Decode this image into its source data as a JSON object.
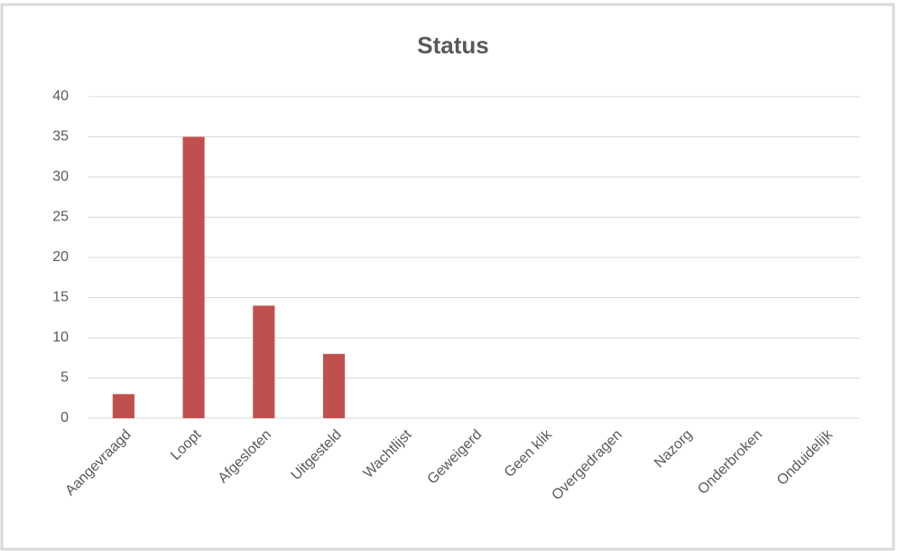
{
  "chart_data": {
    "type": "bar",
    "title": "Status",
    "categories": [
      "Aangevraagd",
      "Loopt",
      "Afgesloten",
      "Uitgesteld",
      "Wachtlijst",
      "Geweigerd",
      "Geen klik",
      "Overgedragen",
      "Nazorg",
      "Onderbroken",
      "Onduidelijk"
    ],
    "values": [
      3,
      35,
      14,
      8,
      0,
      0,
      0,
      0,
      0,
      0,
      0
    ],
    "color": "#c0504d",
    "ylim": [
      0,
      40
    ],
    "yticks": [
      0,
      5,
      10,
      15,
      20,
      25,
      30,
      35,
      40
    ],
    "grid": true
  }
}
